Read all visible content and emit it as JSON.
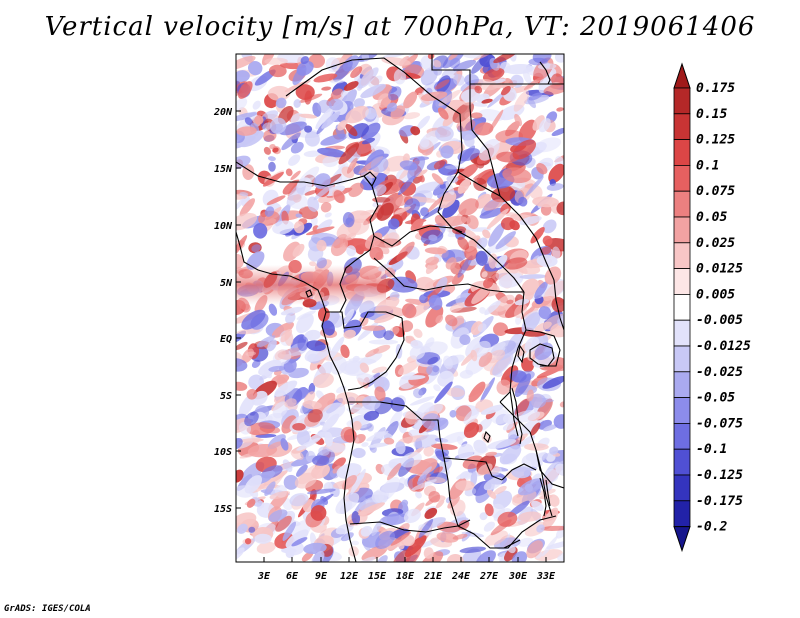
{
  "title": "Vertical velocity [m/s] at 700hPa, VT: 2019061406",
  "credit": "GrADS: IGES/COLA",
  "map": {
    "lat_ticks": [
      "20N",
      "15N",
      "10N",
      "5N",
      "EQ",
      "5S",
      "10S",
      "15S"
    ],
    "lon_ticks": [
      "3E",
      "6E",
      "9E",
      "12E",
      "15E",
      "18E",
      "21E",
      "24E",
      "27E",
      "30E",
      "33E"
    ]
  },
  "colorbar": {
    "labels": [
      "0.175",
      "0.15",
      "0.125",
      "0.1",
      "0.075",
      "0.05",
      "0.025",
      "0.0125",
      "0.005",
      "-0.005",
      "-0.0125",
      "-0.025",
      "-0.05",
      "-0.075",
      "-0.1",
      "-0.125",
      "-0.175",
      "-0.2"
    ],
    "colors": [
      "#a01a1a",
      "#b42828",
      "#c83434",
      "#dc4646",
      "#e66060",
      "#ec8080",
      "#f2a2a2",
      "#f8c6c6",
      "#fde6e6",
      "#ffffff",
      "#e2e2fb",
      "#c8c8f6",
      "#aaaaf0",
      "#8c8ceb",
      "#6e6ee2",
      "#5050d4",
      "#3434be",
      "#2222a8",
      "#16168c"
    ]
  }
}
